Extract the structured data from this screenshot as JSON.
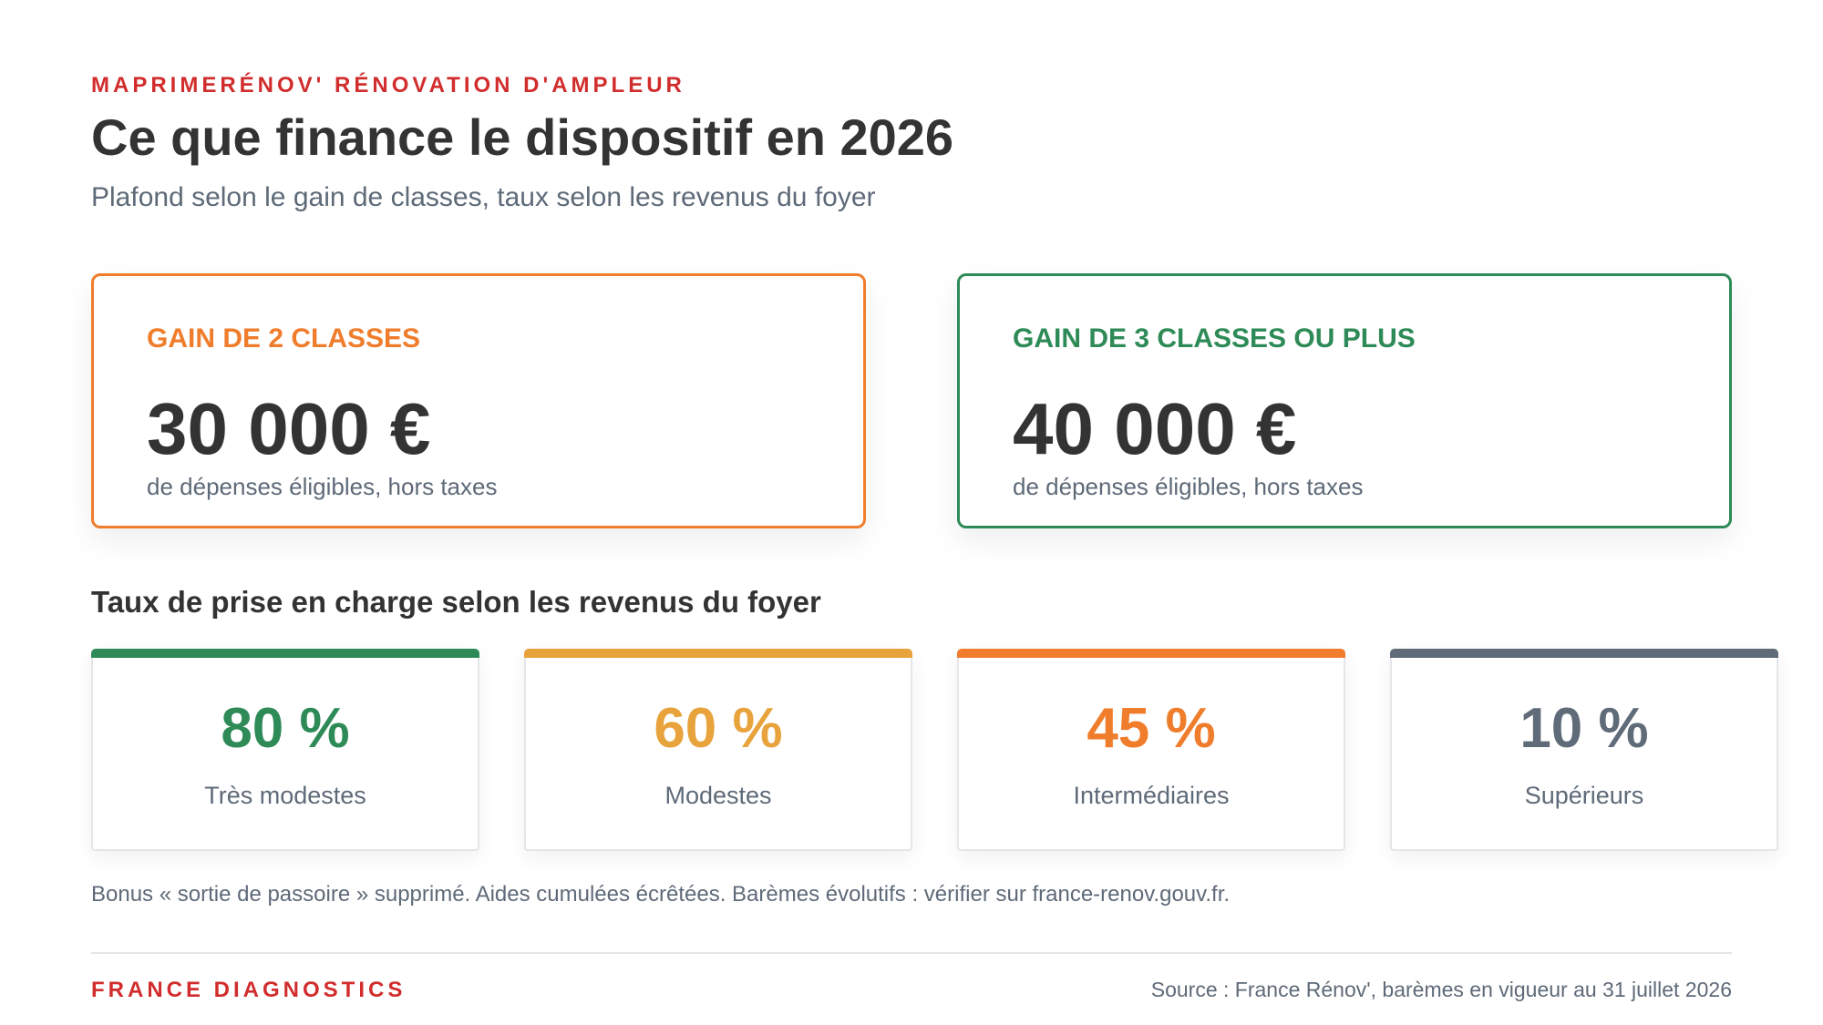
{
  "header": {
    "eyebrow": "MAPRIMERÉNOV' RÉNOVATION D'AMPLEUR",
    "title": "Ce que finance le dispositif en 2026",
    "subtitle": "Plafond selon le gain de classes, taux selon les revenus du foyer"
  },
  "ceilings": [
    {
      "label": "GAIN DE 2 CLASSES",
      "amount": "30 000 €",
      "note": "de dépenses éligibles, hors taxes",
      "color": "#ef7d2c"
    },
    {
      "label": "GAIN DE 3 CLASSES OU PLUS",
      "amount": "40 000 €",
      "note": "de dépenses éligibles, hors taxes",
      "color": "#2e8b57"
    }
  ],
  "rates": {
    "title": "Taux de prise en charge selon les revenus du foyer",
    "items": [
      {
        "value": "80 %",
        "label": "Très modestes",
        "color": "#2e8b57"
      },
      {
        "value": "60 %",
        "label": "Modestes",
        "color": "#e8a33c"
      },
      {
        "value": "45 %",
        "label": "Intermédiaires",
        "color": "#ef7d2c"
      },
      {
        "value": "10 %",
        "label": "Supérieurs",
        "color": "#5f6b78"
      }
    ]
  },
  "footnote": "Bonus « sortie de passoire » supprimé. Aides cumulées écrêtées. Barèmes évolutifs : vérifier sur france-renov.gouv.fr.",
  "footer": {
    "brand": "FRANCE DIAGNOSTICS",
    "source": "Source : France Rénov', barèmes en vigueur au 31 juillet 2026"
  }
}
